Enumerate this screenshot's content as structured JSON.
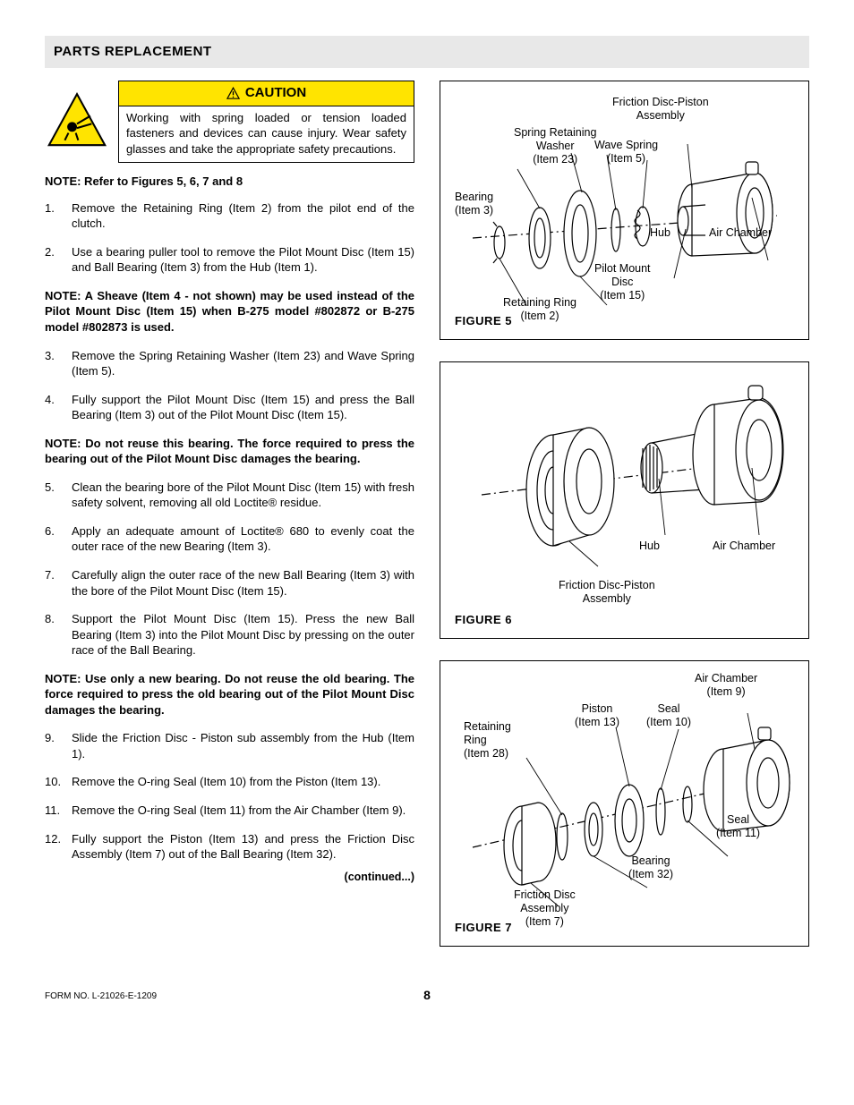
{
  "header": {
    "title": "PARTS REPLACEMENT"
  },
  "caution": {
    "label": "CAUTION",
    "text": "Working with spring loaded or tension loaded fasteners and devices can cause injury.  Wear safety glasses and take the appropriate safety precautions."
  },
  "noteRef": "NOTE: Refer to Figures 5, 6, 7 and 8",
  "steps": {
    "s1": "Remove the Retaining Ring (Item 2) from the pilot end of the clutch.",
    "s2": "Use a bearing puller tool to remove the Pilot Mount Disc (Item 15) and Ball Bearing (Item 3) from the Hub (Item 1).",
    "s3": "Remove the Spring Retaining Washer (Item 23) and Wave Spring (Item 5).",
    "s4": "Fully support the Pilot Mount Disc (Item 15) and press the Ball Bearing (Item 3) out of the Pilot Mount Disc (Item 15).",
    "s5": "Clean the bearing bore of the Pilot Mount Disc (Item 15) with fresh safety solvent, removing all old Loctite® residue.",
    "s6": "Apply an adequate amount of Loctite® 680 to evenly coat the outer race of the new Bearing (Item 3).",
    "s7": "Carefully align the outer race of the new Ball Bearing (Item 3) with the bore of the Pilot Mount Disc (Item 15).",
    "s8": "Support the Pilot Mount Disc (Item 15).  Press the new Ball Bearing (Item 3) into the Pilot Mount Disc by pressing on the outer race of the Ball Bearing.",
    "s9": "Slide the Friction Disc - Piston sub assembly from the Hub (Item 1).",
    "s10": "Remove the O-ring Seal (Item 10) from the Piston (Item 13).",
    "s11": "Remove the O-ring Seal (Item 11) from the Air Chamber (Item 9).",
    "s12": "Fully support the Piston (Item 13) and press the Friction Disc Assembly (Item 7) out of the Ball Bearing (Item 32)."
  },
  "noteA": "NOTE: A Sheave (Item 4 - not shown) may be used instead of the Pilot Mount Disc (Item 15) when B-275 model #802872 or B-275 model #802873 is used.",
  "noteB": "NOTE: Do not reuse this bearing.  The force required to press the bearing out of the Pilot Mount Disc damages the bearing.",
  "noteC": "NOTE: Use only a new bearing.  Do not reuse the old bearing.  The force required to press the old bearing out of the Pilot Mount Disc damages the bearing.",
  "fig5": {
    "label": "FIGURE 5",
    "labels": {
      "frictionAssy": "Friction Disc-Piston\nAssembly",
      "springWasher": "Spring Retaining\nWasher\n(Item 23)",
      "waveSpring": "Wave Spring\n(Item 5)",
      "bearing": "Bearing\n(Item 3)",
      "hub": "Hub",
      "airChamber": "Air Chamber",
      "pilotMount": "Pilot Mount\nDisc\n(Item 15)",
      "retRing": "Retaining Ring\n(Item 2)"
    }
  },
  "fig6": {
    "label": "FIGURE 6",
    "labels": {
      "hub": "Hub",
      "airChamber": "Air Chamber",
      "frictionAssy": "Friction Disc-Piston\nAssembly"
    }
  },
  "fig7": {
    "label": "FIGURE 7",
    "labels": {
      "airChamber": "Air Chamber\n(Item 9)",
      "seal10": "Seal\n(Item 10)",
      "piston": "Piston\n(Item 13)",
      "retRing": "Retaining\nRing\n(Item 28)",
      "seal11": "Seal\n(Item 11)",
      "bearing": "Bearing\n(Item 32)",
      "frictionDisc": "Friction Disc\nAssembly\n(Item 7)"
    }
  },
  "continued": "(continued...)",
  "footer": {
    "form": "FORM NO. L-21026-E-1209",
    "page": "8"
  },
  "colors": {
    "cautionBg": "#ffe400",
    "headerBg": "#e8e8e8",
    "stroke": "#000000"
  }
}
